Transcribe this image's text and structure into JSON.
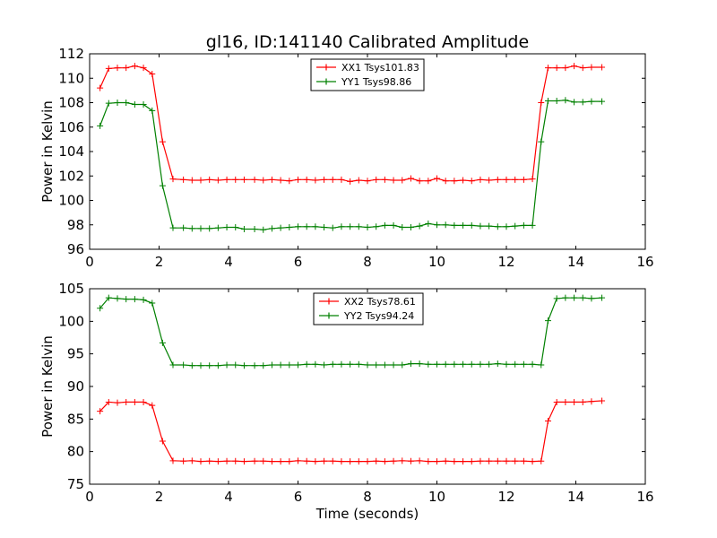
{
  "figure": {
    "title": "gl16, ID:141140 Calibrated Amplitude",
    "xlabel": "Time (seconds)"
  },
  "chart_data": [
    {
      "type": "line",
      "ylabel": "Power in Kelvin",
      "xlim": [
        0,
        16
      ],
      "ylim": [
        96,
        112
      ],
      "xticks": [
        0,
        2,
        4,
        6,
        8,
        10,
        12,
        14,
        16
      ],
      "yticks": [
        96,
        98,
        100,
        102,
        104,
        106,
        108,
        110,
        112
      ],
      "x": [
        0.3,
        0.55,
        0.8,
        1.05,
        1.3,
        1.55,
        1.8,
        2.1,
        2.4,
        2.7,
        2.95,
        3.2,
        3.45,
        3.7,
        3.95,
        4.2,
        4.45,
        4.75,
        5.0,
        5.25,
        5.5,
        5.75,
        6.0,
        6.25,
        6.5,
        6.75,
        7.0,
        7.25,
        7.5,
        7.75,
        8.0,
        8.25,
        8.5,
        8.75,
        9.0,
        9.25,
        9.5,
        9.75,
        10.0,
        10.25,
        10.5,
        10.75,
        11.0,
        11.25,
        11.5,
        11.75,
        12.0,
        12.25,
        12.5,
        12.75,
        13.0,
        13.2,
        13.45,
        13.7,
        13.95,
        14.2,
        14.45,
        14.75
      ],
      "series": [
        {
          "name": "XX1 Tsys101.83",
          "color": "#ff0000",
          "values": [
            109.2,
            110.8,
            110.85,
            110.85,
            111.0,
            110.85,
            110.35,
            104.8,
            101.75,
            101.7,
            101.65,
            101.65,
            101.7,
            101.65,
            101.7,
            101.7,
            101.7,
            101.7,
            101.65,
            101.7,
            101.65,
            101.6,
            101.7,
            101.7,
            101.65,
            101.7,
            101.7,
            101.7,
            101.55,
            101.65,
            101.6,
            101.7,
            101.7,
            101.65,
            101.65,
            101.8,
            101.6,
            101.6,
            101.8,
            101.6,
            101.6,
            101.65,
            101.6,
            101.7,
            101.65,
            101.7,
            101.7,
            101.7,
            101.7,
            101.75,
            108.0,
            110.85,
            110.85,
            110.85,
            111.0,
            110.85,
            110.9,
            110.9
          ]
        },
        {
          "name": "YY1 Tsys98.86",
          "color": "#008000",
          "values": [
            106.1,
            107.95,
            108.0,
            108.0,
            107.85,
            107.85,
            107.35,
            101.2,
            97.75,
            97.75,
            97.7,
            97.7,
            97.7,
            97.75,
            97.8,
            97.8,
            97.65,
            97.65,
            97.6,
            97.7,
            97.75,
            97.8,
            97.85,
            97.85,
            97.85,
            97.8,
            97.75,
            97.85,
            97.85,
            97.85,
            97.8,
            97.85,
            97.95,
            97.95,
            97.8,
            97.8,
            97.9,
            98.1,
            98.0,
            98.0,
            97.95,
            97.95,
            97.95,
            97.9,
            97.9,
            97.85,
            97.85,
            97.9,
            97.95,
            97.95,
            104.8,
            108.15,
            108.15,
            108.2,
            108.05,
            108.05,
            108.1,
            108.1
          ]
        }
      ]
    },
    {
      "type": "line",
      "ylabel": "Power in Kelvin",
      "xlim": [
        0,
        16
      ],
      "ylim": [
        75,
        105
      ],
      "xticks": [
        0,
        2,
        4,
        6,
        8,
        10,
        12,
        14,
        16
      ],
      "yticks": [
        75,
        80,
        85,
        90,
        95,
        100,
        105
      ],
      "x": [
        0.3,
        0.55,
        0.8,
        1.05,
        1.3,
        1.55,
        1.8,
        2.1,
        2.4,
        2.7,
        2.95,
        3.2,
        3.45,
        3.7,
        3.95,
        4.2,
        4.45,
        4.75,
        5.0,
        5.25,
        5.5,
        5.75,
        6.0,
        6.25,
        6.5,
        6.75,
        7.0,
        7.25,
        7.5,
        7.75,
        8.0,
        8.25,
        8.5,
        8.75,
        9.0,
        9.25,
        9.5,
        9.75,
        10.0,
        10.25,
        10.5,
        10.75,
        11.0,
        11.25,
        11.5,
        11.75,
        12.0,
        12.25,
        12.5,
        12.75,
        13.0,
        13.2,
        13.45,
        13.7,
        13.95,
        14.2,
        14.45,
        14.75
      ],
      "series": [
        {
          "name": "XX2 Tsys78.61",
          "color": "#ff0000",
          "values": [
            86.2,
            87.6,
            87.5,
            87.6,
            87.6,
            87.6,
            87.1,
            81.6,
            78.6,
            78.55,
            78.6,
            78.5,
            78.55,
            78.5,
            78.55,
            78.55,
            78.5,
            78.55,
            78.55,
            78.5,
            78.5,
            78.5,
            78.6,
            78.55,
            78.5,
            78.55,
            78.55,
            78.5,
            78.5,
            78.5,
            78.5,
            78.55,
            78.5,
            78.55,
            78.6,
            78.55,
            78.6,
            78.5,
            78.5,
            78.55,
            78.5,
            78.5,
            78.5,
            78.55,
            78.55,
            78.55,
            78.55,
            78.55,
            78.55,
            78.5,
            78.55,
            84.7,
            87.6,
            87.6,
            87.6,
            87.6,
            87.7,
            87.8
          ]
        },
        {
          "name": "YY2 Tsys94.24",
          "color": "#008000",
          "values": [
            102.0,
            103.6,
            103.5,
            103.4,
            103.4,
            103.3,
            102.8,
            96.7,
            93.3,
            93.3,
            93.2,
            93.2,
            93.2,
            93.2,
            93.3,
            93.3,
            93.2,
            93.2,
            93.2,
            93.3,
            93.3,
            93.3,
            93.3,
            93.4,
            93.4,
            93.3,
            93.4,
            93.4,
            93.4,
            93.4,
            93.3,
            93.3,
            93.3,
            93.3,
            93.3,
            93.5,
            93.5,
            93.4,
            93.4,
            93.4,
            93.4,
            93.4,
            93.4,
            93.4,
            93.4,
            93.5,
            93.4,
            93.4,
            93.4,
            93.4,
            93.3,
            100.1,
            103.5,
            103.6,
            103.6,
            103.6,
            103.5,
            103.6
          ]
        }
      ]
    }
  ]
}
